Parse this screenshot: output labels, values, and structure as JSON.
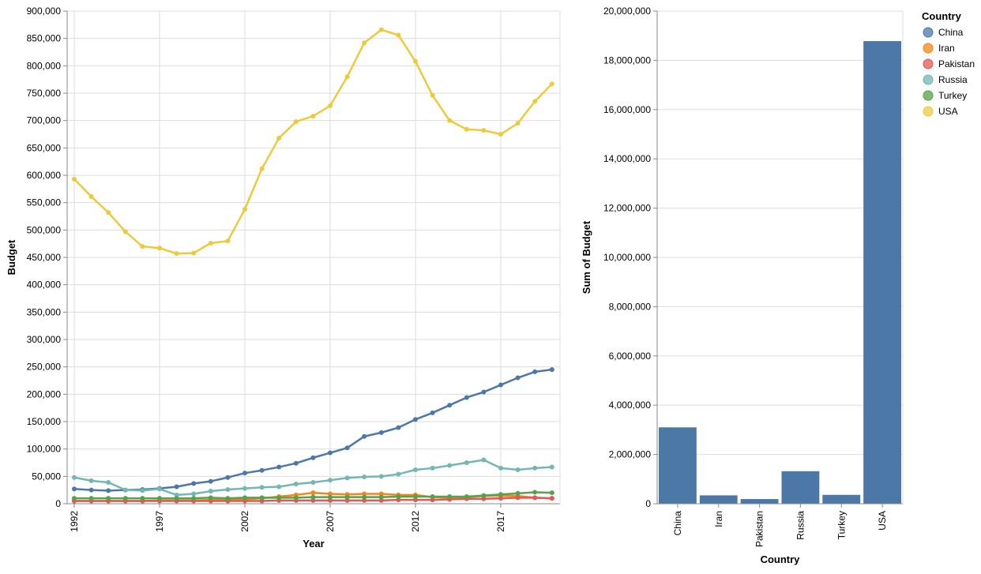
{
  "colors": {
    "China": "#4c78a8",
    "Iran": "#f58518",
    "Pakistan": "#e45756",
    "Russia": "#72b7b2",
    "Turkey": "#54a24b",
    "USA": "#eeca3b",
    "grid": "#dddddd",
    "axis": "#888888"
  },
  "legend": {
    "title": "Country",
    "items": [
      "China",
      "Iran",
      "Pakistan",
      "Russia",
      "Turkey",
      "USA"
    ]
  },
  "chart_data": [
    {
      "type": "line",
      "xlabel": "Year",
      "ylabel": "Budget",
      "xlim": [
        1992,
        2020
      ],
      "ylim": [
        0,
        900000
      ],
      "x_ticks": [
        "1992",
        "1997",
        "2002",
        "2007",
        "2012",
        "2017"
      ],
      "y_ticks": [
        "0",
        "50,000",
        "100,000",
        "150,000",
        "200,000",
        "250,000",
        "300,000",
        "350,000",
        "400,000",
        "450,000",
        "500,000",
        "550,000",
        "600,000",
        "650,000",
        "700,000",
        "750,000",
        "800,000",
        "850,000",
        "900,000"
      ],
      "grid": true,
      "x": [
        1992,
        1993,
        1994,
        1995,
        1996,
        1997,
        1998,
        1999,
        2000,
        2001,
        2002,
        2003,
        2004,
        2005,
        2006,
        2007,
        2008,
        2009,
        2010,
        2011,
        2012,
        2013,
        2014,
        2015,
        2016,
        2017,
        2018,
        2019,
        2020
      ],
      "series": [
        {
          "name": "China",
          "values": [
            27000,
            25000,
            24000,
            25000,
            26000,
            28000,
            31000,
            37000,
            41000,
            48000,
            56000,
            61000,
            67000,
            74000,
            84000,
            93000,
            102000,
            123000,
            130000,
            139000,
            154000,
            166000,
            180000,
            194000,
            204000,
            217000,
            230000,
            241000,
            245000
          ]
        },
        {
          "name": "Iran",
          "values": [
            5000,
            5000,
            5000,
            5000,
            5000,
            6000,
            6000,
            6000,
            7000,
            8000,
            8000,
            10000,
            13000,
            16000,
            20000,
            18000,
            17000,
            18000,
            18000,
            16000,
            16000,
            12000,
            11000,
            12000,
            14000,
            15000,
            14000,
            11000,
            10000
          ]
        },
        {
          "name": "Pakistan",
          "values": [
            5000,
            5000,
            5000,
            5000,
            5000,
            5000,
            5000,
            5000,
            5000,
            5000,
            5000,
            5000,
            6000,
            6000,
            6000,
            6000,
            6000,
            6000,
            6000,
            7000,
            7000,
            7000,
            8000,
            9000,
            9000,
            10000,
            11000,
            11000,
            10000
          ]
        },
        {
          "name": "Russia",
          "values": [
            48000,
            42000,
            39000,
            25000,
            24000,
            27000,
            16000,
            18000,
            23000,
            26000,
            28000,
            30000,
            31000,
            36000,
            39000,
            43000,
            47000,
            49000,
            50000,
            54000,
            62000,
            65000,
            70000,
            75000,
            80000,
            65000,
            62000,
            65000,
            67000
          ]
        },
        {
          "name": "Turkey",
          "values": [
            10000,
            10000,
            10000,
            10000,
            10000,
            10000,
            10000,
            10000,
            11000,
            10000,
            11000,
            11000,
            11000,
            11000,
            12000,
            12000,
            12000,
            12000,
            12000,
            13000,
            13000,
            13000,
            13000,
            13000,
            15000,
            17000,
            19000,
            21000,
            20000
          ]
        },
        {
          "name": "USA",
          "values": [
            593000,
            561000,
            532000,
            497000,
            470000,
            467000,
            457000,
            458000,
            476000,
            480000,
            538000,
            612000,
            668000,
            698000,
            708000,
            727000,
            780000,
            842000,
            866000,
            856000,
            808000,
            746000,
            700000,
            684000,
            682000,
            675000,
            695000,
            735000,
            767000
          ]
        }
      ]
    },
    {
      "type": "bar",
      "xlabel": "Country",
      "ylabel": "Sum of Budget",
      "ylim": [
        0,
        20000000
      ],
      "y_ticks": [
        "0",
        "2,000,000",
        "4,000,000",
        "6,000,000",
        "8,000,000",
        "10,000,000",
        "12,000,000",
        "14,000,000",
        "16,000,000",
        "18,000,000",
        "20,000,000"
      ],
      "grid": true,
      "categories": [
        "China",
        "Iran",
        "Pakistan",
        "Russia",
        "Turkey",
        "USA"
      ],
      "values": [
        3100000,
        340000,
        190000,
        1320000,
        360000,
        18780000
      ]
    }
  ]
}
